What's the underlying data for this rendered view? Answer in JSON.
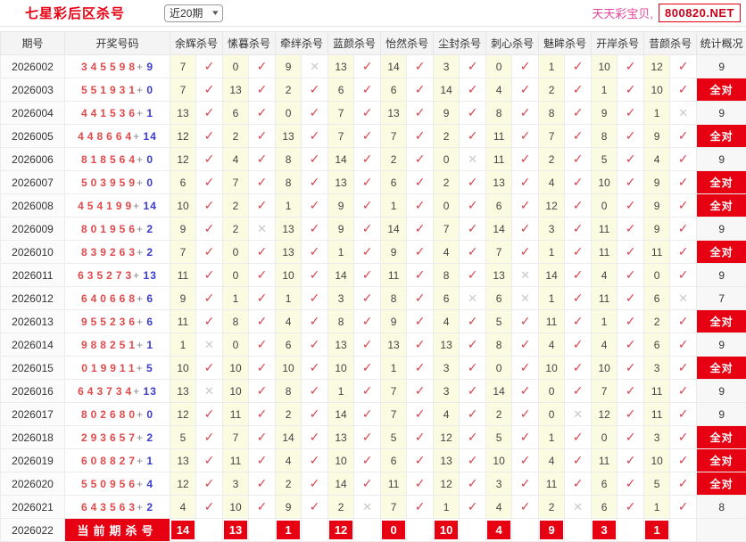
{
  "header": {
    "title": "七星彩后区杀号",
    "range_label": "近20期",
    "brand": "天天彩宝贝,",
    "site": "800820.NET"
  },
  "table": {
    "columns": [
      "期号",
      "开奖号码",
      "余辉杀号",
      "愫暮杀号",
      "牵绊杀号",
      "蓝颜杀号",
      "怡然杀号",
      "尘封杀号",
      "刺心杀号",
      "魅眸杀号",
      "开岸杀号",
      "昔颜杀号",
      "统计概况"
    ],
    "rows": [
      {
        "period": "2026002",
        "front": "345598",
        "back": "9",
        "kills": [
          [
            7,
            1
          ],
          [
            0,
            1
          ],
          [
            9,
            0
          ],
          [
            13,
            1
          ],
          [
            14,
            1
          ],
          [
            3,
            1
          ],
          [
            0,
            1
          ],
          [
            1,
            1
          ],
          [
            10,
            1
          ],
          [
            12,
            1
          ]
        ],
        "stat": "9"
      },
      {
        "period": "2026003",
        "front": "551931",
        "back": "0",
        "kills": [
          [
            7,
            1
          ],
          [
            13,
            1
          ],
          [
            2,
            1
          ],
          [
            6,
            1
          ],
          [
            6,
            1
          ],
          [
            14,
            1
          ],
          [
            4,
            1
          ],
          [
            2,
            1
          ],
          [
            1,
            1
          ],
          [
            10,
            1
          ]
        ],
        "stat": "全对"
      },
      {
        "period": "2026004",
        "front": "441536",
        "back": "1",
        "kills": [
          [
            13,
            1
          ],
          [
            6,
            1
          ],
          [
            0,
            1
          ],
          [
            7,
            1
          ],
          [
            13,
            1
          ],
          [
            9,
            1
          ],
          [
            8,
            1
          ],
          [
            8,
            1
          ],
          [
            9,
            1
          ],
          [
            1,
            0
          ]
        ],
        "stat": "9"
      },
      {
        "period": "2026005",
        "front": "448664",
        "back": "14",
        "kills": [
          [
            12,
            1
          ],
          [
            2,
            1
          ],
          [
            13,
            1
          ],
          [
            7,
            1
          ],
          [
            7,
            1
          ],
          [
            2,
            1
          ],
          [
            11,
            1
          ],
          [
            7,
            1
          ],
          [
            8,
            1
          ],
          [
            9,
            1
          ]
        ],
        "stat": "全对"
      },
      {
        "period": "2026006",
        "front": "818564",
        "back": "0",
        "kills": [
          [
            12,
            1
          ],
          [
            4,
            1
          ],
          [
            8,
            1
          ],
          [
            14,
            1
          ],
          [
            2,
            1
          ],
          [
            0,
            0
          ],
          [
            11,
            1
          ],
          [
            2,
            1
          ],
          [
            5,
            1
          ],
          [
            4,
            1
          ]
        ],
        "stat": "9"
      },
      {
        "period": "2026007",
        "front": "503959",
        "back": "0",
        "kills": [
          [
            6,
            1
          ],
          [
            7,
            1
          ],
          [
            8,
            1
          ],
          [
            13,
            1
          ],
          [
            6,
            1
          ],
          [
            2,
            1
          ],
          [
            13,
            1
          ],
          [
            4,
            1
          ],
          [
            10,
            1
          ],
          [
            9,
            1
          ]
        ],
        "stat": "全对"
      },
      {
        "period": "2026008",
        "front": "454199",
        "back": "14",
        "kills": [
          [
            10,
            1
          ],
          [
            2,
            1
          ],
          [
            1,
            1
          ],
          [
            9,
            1
          ],
          [
            1,
            1
          ],
          [
            0,
            1
          ],
          [
            6,
            1
          ],
          [
            12,
            1
          ],
          [
            0,
            1
          ],
          [
            9,
            1
          ]
        ],
        "stat": "全对"
      },
      {
        "period": "2026009",
        "front": "801956",
        "back": "2",
        "kills": [
          [
            9,
            1
          ],
          [
            2,
            0
          ],
          [
            13,
            1
          ],
          [
            9,
            1
          ],
          [
            14,
            1
          ],
          [
            7,
            1
          ],
          [
            14,
            1
          ],
          [
            3,
            1
          ],
          [
            11,
            1
          ],
          [
            9,
            1
          ]
        ],
        "stat": "9"
      },
      {
        "period": "2026010",
        "front": "839263",
        "back": "2",
        "kills": [
          [
            7,
            1
          ],
          [
            0,
            1
          ],
          [
            13,
            1
          ],
          [
            1,
            1
          ],
          [
            9,
            1
          ],
          [
            4,
            1
          ],
          [
            7,
            1
          ],
          [
            1,
            1
          ],
          [
            11,
            1
          ],
          [
            11,
            1
          ]
        ],
        "stat": "全对"
      },
      {
        "period": "2026011",
        "front": "635273",
        "back": "13",
        "kills": [
          [
            11,
            1
          ],
          [
            0,
            1
          ],
          [
            10,
            1
          ],
          [
            14,
            1
          ],
          [
            11,
            1
          ],
          [
            8,
            1
          ],
          [
            13,
            0
          ],
          [
            14,
            1
          ],
          [
            4,
            1
          ],
          [
            0,
            1
          ]
        ],
        "stat": "9"
      },
      {
        "period": "2026012",
        "front": "640668",
        "back": "6",
        "kills": [
          [
            9,
            1
          ],
          [
            1,
            1
          ],
          [
            1,
            1
          ],
          [
            3,
            1
          ],
          [
            8,
            1
          ],
          [
            6,
            0
          ],
          [
            6,
            0
          ],
          [
            1,
            1
          ],
          [
            11,
            1
          ],
          [
            6,
            0
          ]
        ],
        "stat": "7"
      },
      {
        "period": "2026013",
        "front": "955236",
        "back": "6",
        "kills": [
          [
            11,
            1
          ],
          [
            8,
            1
          ],
          [
            4,
            1
          ],
          [
            8,
            1
          ],
          [
            9,
            1
          ],
          [
            4,
            1
          ],
          [
            5,
            1
          ],
          [
            11,
            1
          ],
          [
            1,
            1
          ],
          [
            2,
            1
          ]
        ],
        "stat": "全对"
      },
      {
        "period": "2026014",
        "front": "988251",
        "back": "1",
        "kills": [
          [
            1,
            0
          ],
          [
            0,
            1
          ],
          [
            6,
            1
          ],
          [
            13,
            1
          ],
          [
            13,
            1
          ],
          [
            13,
            1
          ],
          [
            8,
            1
          ],
          [
            4,
            1
          ],
          [
            4,
            1
          ],
          [
            6,
            1
          ]
        ],
        "stat": "9"
      },
      {
        "period": "2026015",
        "front": "019911",
        "back": "5",
        "kills": [
          [
            10,
            1
          ],
          [
            10,
            1
          ],
          [
            10,
            1
          ],
          [
            10,
            1
          ],
          [
            1,
            1
          ],
          [
            3,
            1
          ],
          [
            0,
            1
          ],
          [
            10,
            1
          ],
          [
            10,
            1
          ],
          [
            3,
            1
          ]
        ],
        "stat": "全对"
      },
      {
        "period": "2026016",
        "front": "643734",
        "back": "13",
        "kills": [
          [
            13,
            0
          ],
          [
            10,
            1
          ],
          [
            8,
            1
          ],
          [
            1,
            1
          ],
          [
            7,
            1
          ],
          [
            3,
            1
          ],
          [
            14,
            1
          ],
          [
            0,
            1
          ],
          [
            7,
            1
          ],
          [
            11,
            1
          ]
        ],
        "stat": "9"
      },
      {
        "period": "2026017",
        "front": "802680",
        "back": "0",
        "kills": [
          [
            12,
            1
          ],
          [
            11,
            1
          ],
          [
            2,
            1
          ],
          [
            14,
            1
          ],
          [
            7,
            1
          ],
          [
            4,
            1
          ],
          [
            2,
            1
          ],
          [
            0,
            0
          ],
          [
            12,
            1
          ],
          [
            11,
            1
          ]
        ],
        "stat": "9"
      },
      {
        "period": "2026018",
        "front": "293657",
        "back": "2",
        "kills": [
          [
            5,
            1
          ],
          [
            7,
            1
          ],
          [
            14,
            1
          ],
          [
            13,
            1
          ],
          [
            5,
            1
          ],
          [
            12,
            1
          ],
          [
            5,
            1
          ],
          [
            1,
            1
          ],
          [
            0,
            1
          ],
          [
            3,
            1
          ]
        ],
        "stat": "全对"
      },
      {
        "period": "2026019",
        "front": "608827",
        "back": "1",
        "kills": [
          [
            13,
            1
          ],
          [
            11,
            1
          ],
          [
            4,
            1
          ],
          [
            10,
            1
          ],
          [
            6,
            1
          ],
          [
            13,
            1
          ],
          [
            10,
            1
          ],
          [
            4,
            1
          ],
          [
            11,
            1
          ],
          [
            10,
            1
          ]
        ],
        "stat": "全对"
      },
      {
        "period": "2026020",
        "front": "550956",
        "back": "4",
        "kills": [
          [
            12,
            1
          ],
          [
            3,
            1
          ],
          [
            2,
            1
          ],
          [
            14,
            1
          ],
          [
            11,
            1
          ],
          [
            12,
            1
          ],
          [
            3,
            1
          ],
          [
            11,
            1
          ],
          [
            6,
            1
          ],
          [
            5,
            1
          ]
        ],
        "stat": "全对"
      },
      {
        "period": "2026021",
        "front": "643563",
        "back": "2",
        "kills": [
          [
            4,
            1
          ],
          [
            10,
            1
          ],
          [
            9,
            1
          ],
          [
            2,
            0
          ],
          [
            7,
            1
          ],
          [
            1,
            1
          ],
          [
            4,
            1
          ],
          [
            2,
            0
          ],
          [
            6,
            1
          ],
          [
            1,
            1
          ]
        ],
        "stat": "8"
      }
    ],
    "current_row": {
      "period": "2026022",
      "label": "当前期杀号",
      "kills": [
        14,
        13,
        1,
        12,
        0,
        10,
        4,
        9,
        3,
        1
      ],
      "stat": ""
    },
    "all_correct_label": "全对"
  },
  "icons": {
    "check": "✓",
    "cross": "✕",
    "chevron_down": "▾"
  },
  "colors": {
    "accent_red": "#e60012",
    "check_red": "#d9444f",
    "cross_gray": "#c9c9c9",
    "kill_cell_yellow": "#fbfbe1",
    "front_digit_red": "#e04a4a",
    "back_number_blue": "#3a3ccc",
    "brand_pink": "#e5459a"
  }
}
